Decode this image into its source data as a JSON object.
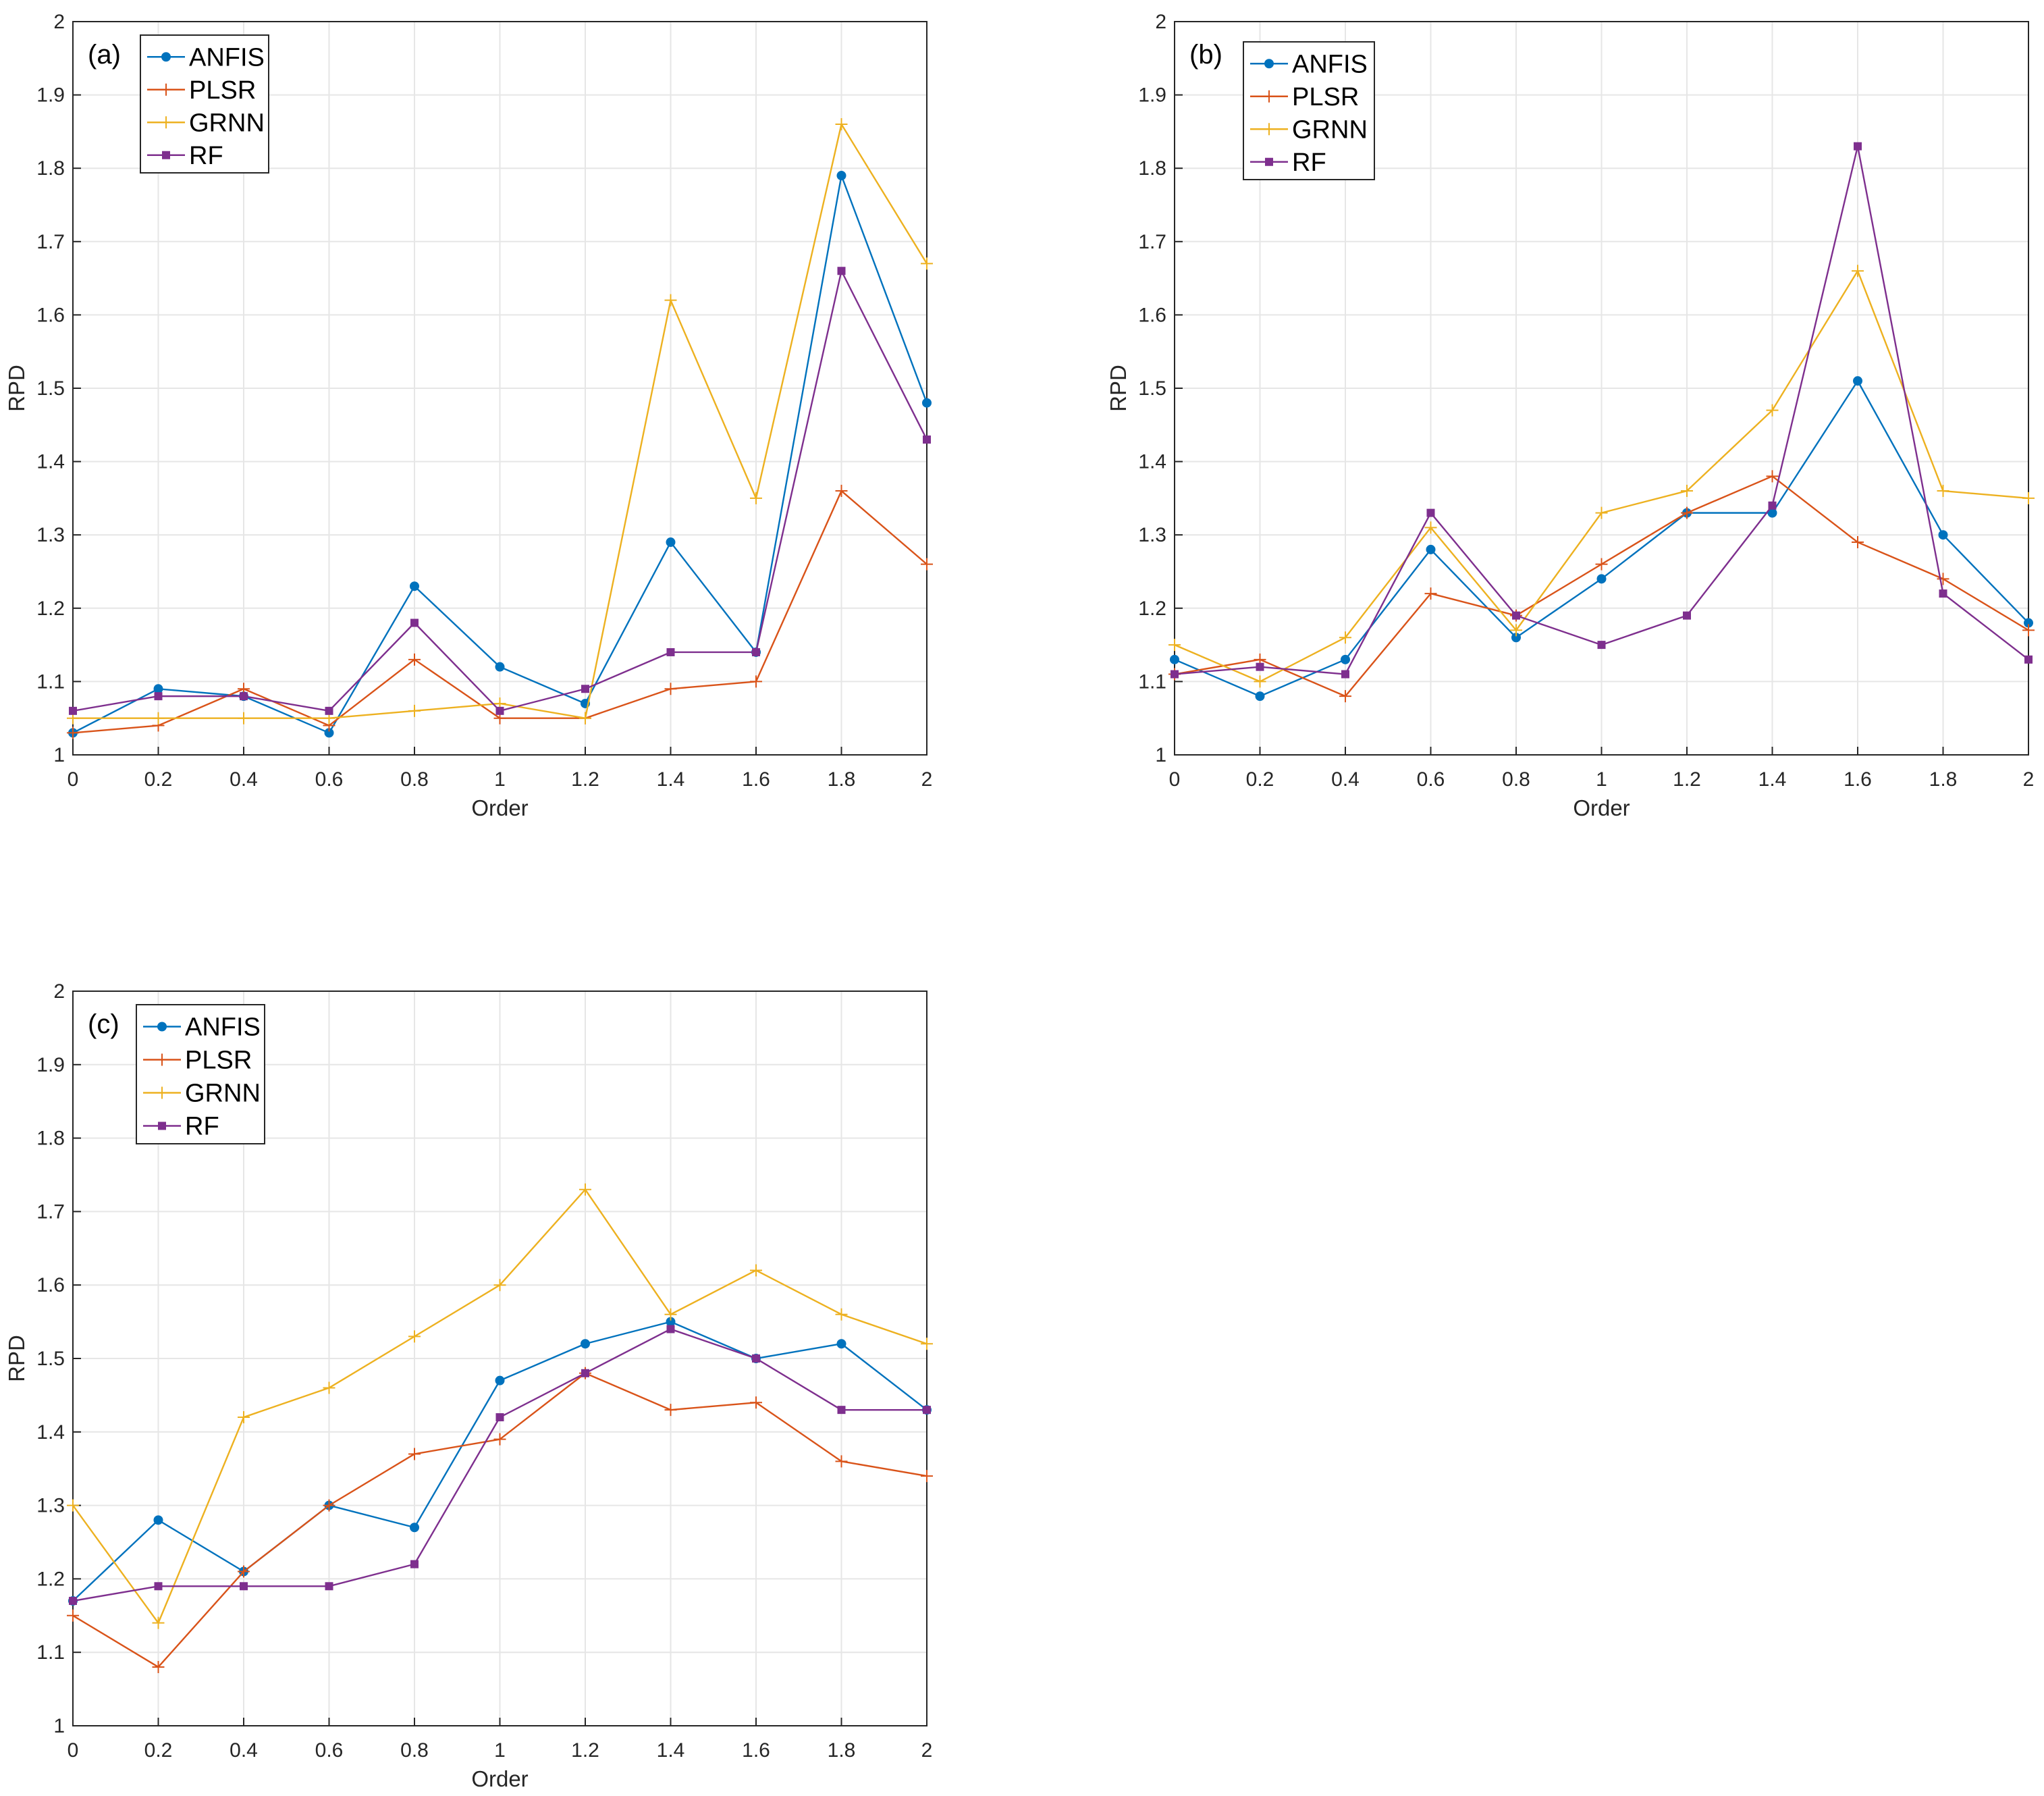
{
  "chart_data": [
    {
      "type": "line",
      "panel_label": "(a)",
      "xlabel": "Order",
      "ylabel": "RPD",
      "xlim": [
        0,
        2
      ],
      "ylim": [
        1,
        2
      ],
      "xticks": [
        "0",
        "0.2",
        "0.4",
        "0.6",
        "0.8",
        "1",
        "1.2",
        "1.4",
        "1.6",
        "1.8",
        "2"
      ],
      "yticks": [
        "1",
        "1.1",
        "1.2",
        "1.3",
        "1.4",
        "1.5",
        "1.6",
        "1.7",
        "1.8",
        "1.9",
        "2"
      ],
      "grid": true,
      "legend_position": "top-left",
      "x": [
        0,
        0.2,
        0.4,
        0.6,
        0.8,
        1.0,
        1.2,
        1.4,
        1.6,
        1.8,
        2.0
      ],
      "series": [
        {
          "name": "ANFIS",
          "color": "#0072BD",
          "marker": "dot",
          "values": [
            1.03,
            1.09,
            1.08,
            1.03,
            1.23,
            1.12,
            1.07,
            1.29,
            1.14,
            1.79,
            1.48
          ]
        },
        {
          "name": "PLSR",
          "color": "#D95319",
          "marker": "plus",
          "values": [
            1.03,
            1.04,
            1.09,
            1.04,
            1.13,
            1.05,
            1.05,
            1.09,
            1.1,
            1.36,
            1.26
          ]
        },
        {
          "name": "GRNN",
          "color": "#EDB120",
          "marker": "plus",
          "values": [
            1.05,
            1.05,
            1.05,
            1.05,
            1.06,
            1.07,
            1.05,
            1.62,
            1.35,
            1.86,
            1.67
          ]
        },
        {
          "name": "RF",
          "color": "#7E2F8E",
          "marker": "square",
          "values": [
            1.06,
            1.08,
            1.08,
            1.06,
            1.18,
            1.06,
            1.09,
            1.14,
            1.14,
            1.66,
            1.43
          ]
        }
      ]
    },
    {
      "type": "line",
      "panel_label": "(b)",
      "xlabel": "Order",
      "ylabel": "RPD",
      "xlim": [
        0,
        2
      ],
      "ylim": [
        1,
        2
      ],
      "xticks": [
        "0",
        "0.2",
        "0.4",
        "0.6",
        "0.8",
        "1",
        "1.2",
        "1.4",
        "1.6",
        "1.8",
        "2"
      ],
      "yticks": [
        "1",
        "1.1",
        "1.2",
        "1.3",
        "1.4",
        "1.5",
        "1.6",
        "1.7",
        "1.8",
        "1.9",
        "2"
      ],
      "grid": true,
      "legend_position": "top-left",
      "x": [
        0,
        0.2,
        0.4,
        0.6,
        0.8,
        1.0,
        1.2,
        1.4,
        1.6,
        1.8,
        2.0
      ],
      "series": [
        {
          "name": "ANFIS",
          "color": "#0072BD",
          "marker": "dot",
          "values": [
            1.13,
            1.08,
            1.13,
            1.28,
            1.16,
            1.24,
            1.33,
            1.33,
            1.51,
            1.3,
            1.18
          ]
        },
        {
          "name": "PLSR",
          "color": "#D95319",
          "marker": "plus",
          "values": [
            1.11,
            1.13,
            1.08,
            1.22,
            1.19,
            1.26,
            1.33,
            1.38,
            1.29,
            1.24,
            1.17
          ]
        },
        {
          "name": "GRNN",
          "color": "#EDB120",
          "marker": "plus",
          "values": [
            1.15,
            1.1,
            1.16,
            1.31,
            1.17,
            1.33,
            1.36,
            1.47,
            1.66,
            1.36,
            1.35
          ]
        },
        {
          "name": "RF",
          "color": "#7E2F8E",
          "marker": "square",
          "values": [
            1.11,
            1.12,
            1.11,
            1.33,
            1.19,
            1.15,
            1.19,
            1.34,
            1.83,
            1.22,
            1.13
          ]
        }
      ]
    },
    {
      "type": "line",
      "panel_label": "(c)",
      "xlabel": "Order",
      "ylabel": "RPD",
      "xlim": [
        0,
        2
      ],
      "ylim": [
        1,
        2
      ],
      "xticks": [
        "0",
        "0.2",
        "0.4",
        "0.6",
        "0.8",
        "1",
        "1.2",
        "1.4",
        "1.6",
        "1.8",
        "2"
      ],
      "yticks": [
        "1",
        "1.1",
        "1.2",
        "1.3",
        "1.4",
        "1.5",
        "1.6",
        "1.7",
        "1.8",
        "1.9",
        "2"
      ],
      "grid": true,
      "legend_position": "top-left",
      "x": [
        0,
        0.2,
        0.4,
        0.6,
        0.8,
        1.0,
        1.2,
        1.4,
        1.6,
        1.8,
        2.0
      ],
      "series": [
        {
          "name": "ANFIS",
          "color": "#0072BD",
          "marker": "dot",
          "values": [
            1.17,
            1.28,
            1.21,
            1.3,
            1.27,
            1.47,
            1.52,
            1.55,
            1.5,
            1.52,
            1.43
          ]
        },
        {
          "name": "PLSR",
          "color": "#D95319",
          "marker": "plus",
          "values": [
            1.15,
            1.08,
            1.21,
            1.3,
            1.37,
            1.39,
            1.48,
            1.43,
            1.44,
            1.36,
            1.34
          ]
        },
        {
          "name": "GRNN",
          "color": "#EDB120",
          "marker": "plus",
          "values": [
            1.3,
            1.14,
            1.42,
            1.46,
            1.53,
            1.6,
            1.73,
            1.56,
            1.62,
            1.56,
            1.52
          ]
        },
        {
          "name": "RF",
          "color": "#7E2F8E",
          "marker": "square",
          "values": [
            1.17,
            1.19,
            1.19,
            1.19,
            1.22,
            1.42,
            1.48,
            1.54,
            1.5,
            1.43,
            1.43
          ]
        }
      ]
    }
  ]
}
